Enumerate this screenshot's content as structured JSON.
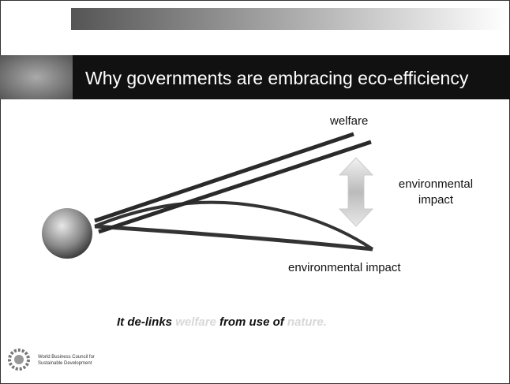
{
  "title": "Why governments are embracing eco-efficiency",
  "diagram": {
    "welfare_label": "welfare",
    "arrow_label": [
      "environmental",
      "impact"
    ],
    "curve_label": "environmental impact"
  },
  "tagline": [
    "It de-links ",
    "welfare",
    " from use of ",
    "nature."
  ],
  "logo": [
    "World Business Council for",
    "Sustainable Development"
  ]
}
